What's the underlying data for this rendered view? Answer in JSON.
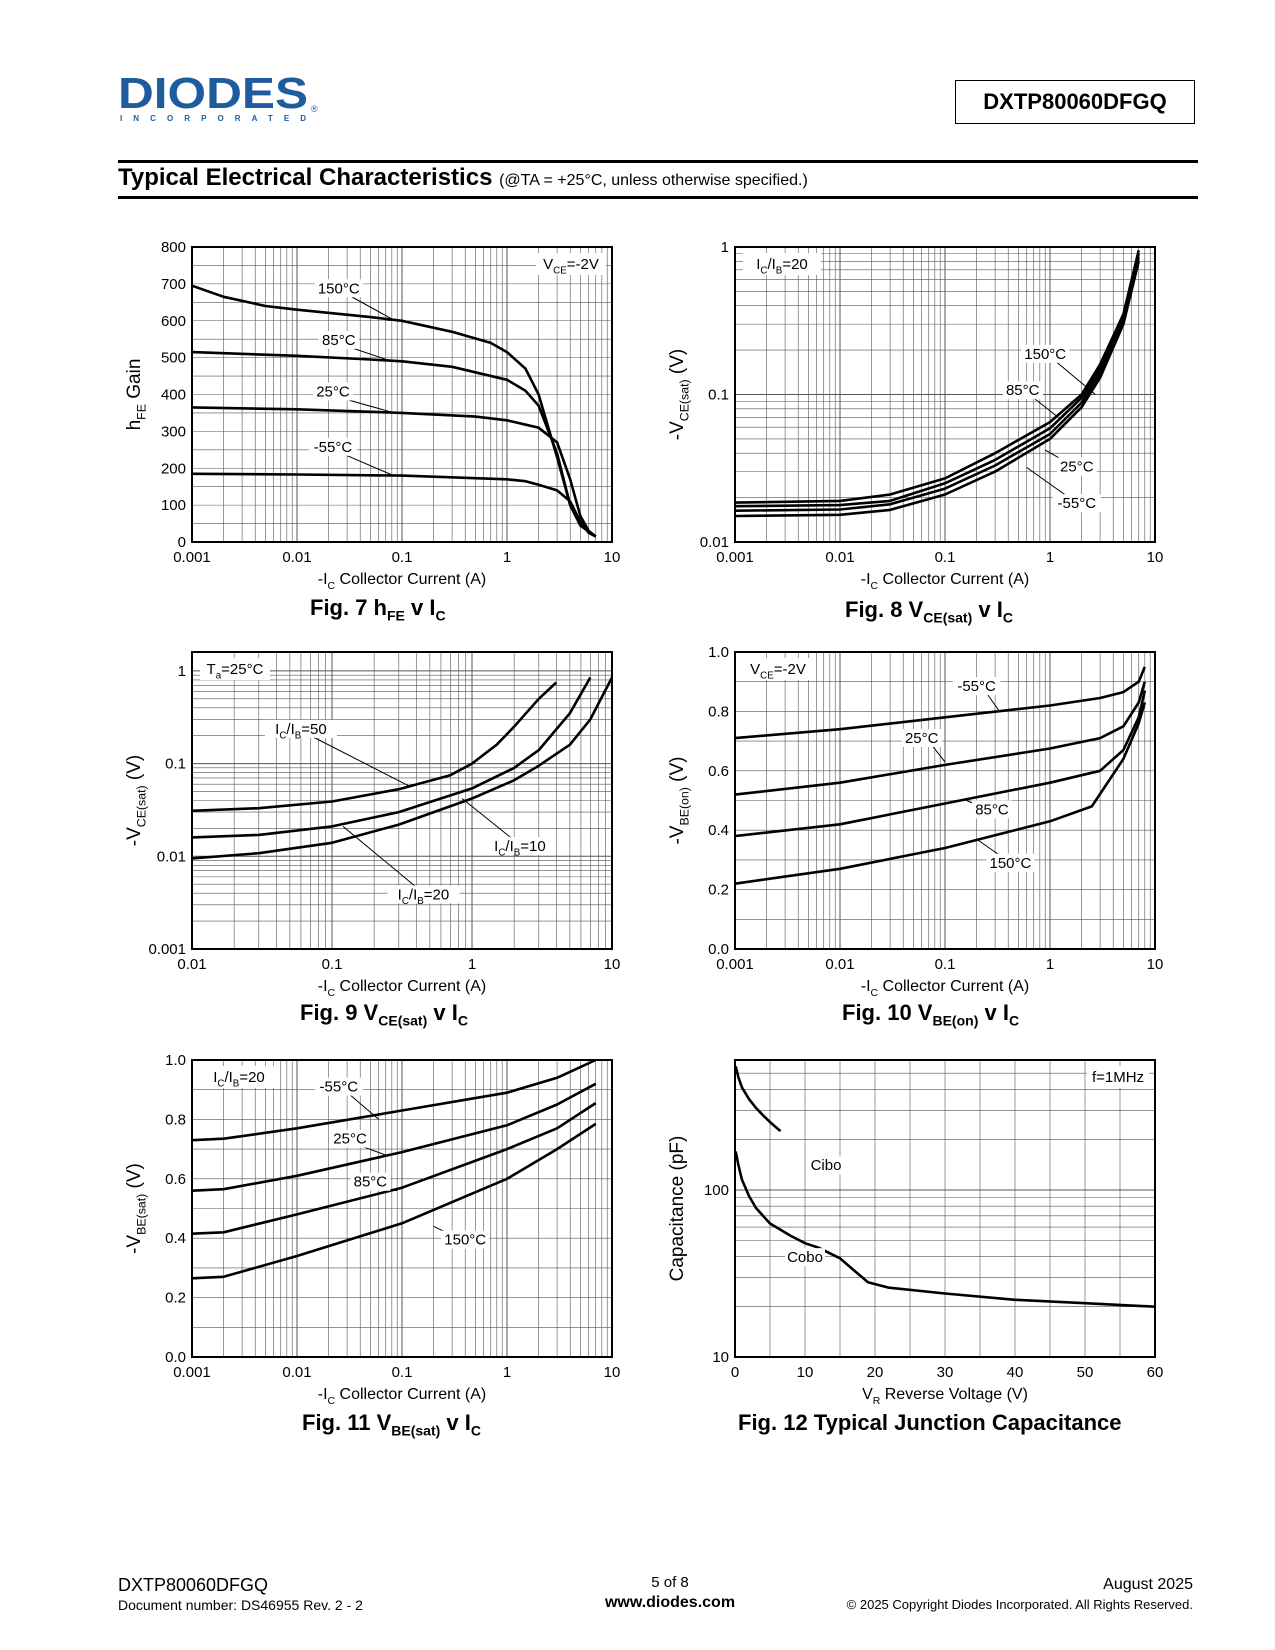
{
  "header": {
    "logo_text": "DIODES",
    "logo_sub": "INCORPORATED",
    "part_number": "DXTP80060DFGQ"
  },
  "section": {
    "title": "Typical Electrical Characteristics",
    "condition": "(@TA = +25°C, unless otherwise specified.)"
  },
  "footer": {
    "part": "DXTP80060DFGQ",
    "doc": "Document number: DS46955 Rev. 2 - 2",
    "page": "5 of 8",
    "site": "www.diodes.com",
    "date": "August 2025",
    "copyright": "© 2025 Copyright Diodes Incorporated. All Rights Reserved."
  },
  "chart_data": [
    {
      "id": "fig7",
      "type": "line",
      "caption": {
        "main": "Fig. 7   h",
        "sub1": "FE",
        "mid": " v  I",
        "sub2": "C"
      },
      "xscale": "log",
      "yscale": "linear",
      "xlim": [
        0.001,
        10
      ],
      "ylim": [
        0,
        800
      ],
      "xticks": [
        0.001,
        0.01,
        0.1,
        1,
        10
      ],
      "xticklabels": [
        "0.001",
        "0.01",
        "0.1",
        "1",
        "10"
      ],
      "yticks": [
        0,
        100,
        200,
        300,
        400,
        500,
        600,
        700,
        800
      ],
      "yticklabels": [
        "0",
        "100",
        "200",
        "300",
        "400",
        "500",
        "600",
        "700",
        "800"
      ],
      "xlabel": "-IC   Collector Current (A)",
      "ylabel": "hFE Gain",
      "annotation": "VCE=-2V",
      "series": [
        {
          "name": "150°C",
          "x": [
            0.001,
            0.002,
            0.005,
            0.01,
            0.05,
            0.1,
            0.3,
            0.7,
            1.0,
            1.5,
            2.0,
            3.0,
            4.0,
            5.0,
            7.0
          ],
          "y": [
            695,
            665,
            640,
            630,
            610,
            600,
            570,
            540,
            515,
            470,
            400,
            230,
            100,
            45,
            15
          ]
        },
        {
          "name": "85°C",
          "x": [
            0.001,
            0.01,
            0.05,
            0.1,
            0.3,
            1.0,
            1.5,
            2.0,
            3.0,
            4.0,
            5.0,
            7.0
          ],
          "y": [
            515,
            505,
            495,
            490,
            475,
            440,
            410,
            370,
            240,
            100,
            45,
            15
          ]
        },
        {
          "name": "25°C",
          "x": [
            0.001,
            0.01,
            0.1,
            0.5,
            1.0,
            2.0,
            3.0,
            4.0,
            5.0,
            6.0,
            7.0
          ],
          "y": [
            365,
            360,
            350,
            340,
            330,
            310,
            270,
            170,
            70,
            30,
            15
          ]
        },
        {
          "name": "-55°C",
          "x": [
            0.001,
            0.01,
            0.1,
            1.0,
            1.5,
            2.0,
            3.0,
            4.0,
            5.0,
            6.0,
            7.0
          ],
          "y": [
            185,
            183,
            180,
            170,
            165,
            155,
            140,
            110,
            55,
            25,
            15
          ]
        }
      ],
      "labels": [
        {
          "text": "150°C",
          "x": 0.025,
          "y": 680,
          "lx": 0.08,
          "ly": 605
        },
        {
          "text": "85°C",
          "x": 0.025,
          "y": 540,
          "lx": 0.08,
          "ly": 490
        },
        {
          "text": "25°C",
          "x": 0.022,
          "y": 400,
          "lx": 0.08,
          "ly": 352
        },
        {
          "text": "-55°C",
          "x": 0.022,
          "y": 250,
          "lx": 0.08,
          "ly": 182
        }
      ]
    },
    {
      "id": "fig8",
      "type": "line",
      "caption": {
        "main": "Fig. 8   V",
        "sub1": "CE(sat)",
        "mid": " v  I",
        "sub2": "C"
      },
      "xscale": "log",
      "yscale": "log",
      "xlim": [
        0.001,
        10
      ],
      "ylim": [
        0.01,
        1
      ],
      "xticks": [
        0.001,
        0.01,
        0.1,
        1,
        10
      ],
      "xticklabels": [
        "0.001",
        "0.01",
        "0.1",
        "1",
        "10"
      ],
      "yticks": [
        0.01,
        0.1,
        1
      ],
      "yticklabels": [
        "0.01",
        "0.1",
        "1"
      ],
      "xlabel": "-IC   Collector Current (A)",
      "ylabel": "-VCE(sat) (V)",
      "annotation": "IC/IB=20",
      "series": [
        {
          "name": "150°C",
          "x": [
            0.001,
            0.01,
            0.03,
            0.1,
            0.3,
            1.0,
            2.0,
            3.0,
            5.0,
            7.0
          ],
          "y": [
            0.0185,
            0.019,
            0.021,
            0.027,
            0.04,
            0.065,
            0.1,
            0.16,
            0.35,
            0.95
          ]
        },
        {
          "name": "85°C",
          "x": [
            0.001,
            0.01,
            0.03,
            0.1,
            0.3,
            1.0,
            2.0,
            3.0,
            5.0,
            7.0
          ],
          "y": [
            0.0175,
            0.0178,
            0.019,
            0.025,
            0.036,
            0.059,
            0.095,
            0.15,
            0.33,
            0.9
          ]
        },
        {
          "name": "25°C",
          "x": [
            0.001,
            0.01,
            0.03,
            0.1,
            0.3,
            1.0,
            2.0,
            3.0,
            5.0,
            7.0
          ],
          "y": [
            0.0163,
            0.0166,
            0.018,
            0.023,
            0.033,
            0.054,
            0.088,
            0.14,
            0.31,
            0.85
          ]
        },
        {
          "name": "-55°C",
          "x": [
            0.001,
            0.01,
            0.03,
            0.1,
            0.3,
            1.0,
            2.0,
            3.0,
            5.0,
            7.0
          ],
          "y": [
            0.015,
            0.0153,
            0.0165,
            0.021,
            0.03,
            0.05,
            0.082,
            0.13,
            0.3,
            0.8
          ]
        }
      ],
      "labels": [
        {
          "text": "150°C",
          "x": 0.9,
          "y": 0.18,
          "lx": 2.7,
          "ly": 0.1
        },
        {
          "text": "85°C",
          "x": 0.55,
          "y": 0.102,
          "lx": 1.2,
          "ly": 0.07
        },
        {
          "text": "25°C",
          "x": 1.8,
          "y": 0.031,
          "lx": 0.9,
          "ly": 0.042
        },
        {
          "text": "-55°C",
          "x": 1.8,
          "y": 0.0175,
          "lx": 0.6,
          "ly": 0.032
        }
      ]
    },
    {
      "id": "fig9",
      "type": "line",
      "caption": {
        "main": "Fig. 9   V",
        "sub1": "CE(sat)",
        "mid": " v  I",
        "sub2": "C"
      },
      "xscale": "log",
      "yscale": "log",
      "xlim": [
        0.01,
        10
      ],
      "ylim": [
        0.001,
        1.6
      ],
      "xticks": [
        0.01,
        0.1,
        1,
        10
      ],
      "xticklabels": [
        "0.01",
        "0.1",
        "1",
        "10"
      ],
      "yticks": [
        0.001,
        0.01,
        0.1,
        1
      ],
      "yticklabels": [
        "0.001",
        "0.01",
        "0.1",
        "1"
      ],
      "xlabel": "-IC   Collector Current (A)",
      "ylabel": "-VCE(sat) (V)",
      "annotation": "Ta=25°C",
      "series": [
        {
          "name": "IC/IB=50",
          "x": [
            0.01,
            0.03,
            0.1,
            0.3,
            0.7,
            1.0,
            1.5,
            2.0,
            3.0,
            4.0
          ],
          "y": [
            0.031,
            0.033,
            0.039,
            0.053,
            0.075,
            0.1,
            0.16,
            0.25,
            0.5,
            0.75
          ]
        },
        {
          "name": "IC/IB=20",
          "x": [
            0.01,
            0.03,
            0.1,
            0.3,
            1.0,
            2.0,
            3.0,
            5.0,
            7.0
          ],
          "y": [
            0.016,
            0.017,
            0.021,
            0.03,
            0.054,
            0.09,
            0.14,
            0.35,
            0.85
          ]
        },
        {
          "name": "IC/IB=10",
          "x": [
            0.01,
            0.03,
            0.1,
            0.3,
            1.0,
            2.0,
            3.0,
            5.0,
            7.0,
            10.0
          ],
          "y": [
            0.0095,
            0.0108,
            0.014,
            0.022,
            0.042,
            0.066,
            0.095,
            0.16,
            0.3,
            0.85
          ]
        }
      ],
      "labels": [
        {
          "text": "IC/IB=50",
          "x": 0.06,
          "y": 0.22,
          "lx": 0.35,
          "ly": 0.058
        },
        {
          "text": "IC/IB=10",
          "x": 2.2,
          "y": 0.012,
          "lx": 0.85,
          "ly": 0.042
        },
        {
          "text": "IC/IB=20",
          "x": 0.45,
          "y": 0.0036,
          "lx": 0.12,
          "ly": 0.021
        }
      ]
    },
    {
      "id": "fig10",
      "type": "line",
      "caption": {
        "main": "Fig. 10   V",
        "sub1": "BE(on)",
        "mid": " v  I",
        "sub2": "C"
      },
      "xscale": "log",
      "yscale": "linear",
      "xlim": [
        0.001,
        10
      ],
      "ylim": [
        0,
        1.0
      ],
      "xticks": [
        0.001,
        0.01,
        0.1,
        1,
        10
      ],
      "xticklabels": [
        "0.001",
        "0.01",
        "0.1",
        "1",
        "10"
      ],
      "yticks": [
        0,
        0.2,
        0.4,
        0.6,
        0.8,
        1.0
      ],
      "yticklabels": [
        "0.0",
        "0.2",
        "0.4",
        "0.6",
        "0.8",
        "1.0"
      ],
      "xlabel": "-IC   Collector Current (A)",
      "ylabel": "-VBE(on) (V)",
      "annotation": "VCE=-2V",
      "series": [
        {
          "name": "-55°C",
          "x": [
            0.001,
            0.01,
            0.1,
            1.0,
            3.0,
            5.0,
            7.0,
            8.0
          ],
          "y": [
            0.71,
            0.74,
            0.78,
            0.82,
            0.845,
            0.865,
            0.9,
            0.95
          ]
        },
        {
          "name": "25°C",
          "x": [
            0.001,
            0.01,
            0.1,
            1.0,
            3.0,
            5.0,
            7.0,
            8.0
          ],
          "y": [
            0.52,
            0.56,
            0.62,
            0.675,
            0.71,
            0.75,
            0.83,
            0.9
          ]
        },
        {
          "name": "85°C",
          "x": [
            0.001,
            0.01,
            0.1,
            1.0,
            3.0,
            5.0,
            7.0,
            8.0
          ],
          "y": [
            0.38,
            0.42,
            0.49,
            0.56,
            0.6,
            0.67,
            0.78,
            0.87
          ]
        },
        {
          "name": "150°C",
          "x": [
            0.001,
            0.01,
            0.1,
            1.0,
            2.5,
            5.0,
            7.0,
            8.0
          ],
          "y": [
            0.22,
            0.27,
            0.34,
            0.43,
            0.48,
            0.64,
            0.76,
            0.83
          ]
        }
      ],
      "labels": [
        {
          "text": "-55°C",
          "x": 0.2,
          "y": 0.875,
          "lx": 0.33,
          "ly": 0.8
        },
        {
          "text": "25°C",
          "x": 0.06,
          "y": 0.7,
          "lx": 0.1,
          "ly": 0.63
        },
        {
          "text": "85°C",
          "x": 0.28,
          "y": 0.46,
          "lx": 0.15,
          "ly": 0.505
        },
        {
          "text": "150°C",
          "x": 0.42,
          "y": 0.28,
          "lx": 0.2,
          "ly": 0.37
        }
      ]
    },
    {
      "id": "fig11",
      "type": "line",
      "caption": {
        "main": "Fig. 11   V",
        "sub1": "BE(sat)",
        "mid": " v  I",
        "sub2": "C"
      },
      "xscale": "log",
      "yscale": "linear",
      "xlim": [
        0.001,
        10
      ],
      "ylim": [
        0,
        1.0
      ],
      "xticks": [
        0.001,
        0.01,
        0.1,
        1,
        10
      ],
      "xticklabels": [
        "0.001",
        "0.01",
        "0.1",
        "1",
        "10"
      ],
      "yticks": [
        0,
        0.2,
        0.4,
        0.6,
        0.8,
        1.0
      ],
      "yticklabels": [
        "0.0",
        "0.2",
        "0.4",
        "0.6",
        "0.8",
        "1.0"
      ],
      "xlabel": "-IC   Collector Current (A)",
      "ylabel": "-VBE(sat) (V)",
      "annotation": "IC/IB=20",
      "series": [
        {
          "name": "-55°C",
          "x": [
            0.001,
            0.002,
            0.01,
            0.1,
            1.0,
            3.0,
            7.0
          ],
          "y": [
            0.73,
            0.735,
            0.77,
            0.83,
            0.89,
            0.94,
            1.0
          ]
        },
        {
          "name": "25°C",
          "x": [
            0.001,
            0.002,
            0.01,
            0.1,
            1.0,
            3.0,
            7.0
          ],
          "y": [
            0.56,
            0.565,
            0.61,
            0.69,
            0.78,
            0.85,
            0.92
          ]
        },
        {
          "name": "85°C",
          "x": [
            0.001,
            0.002,
            0.01,
            0.1,
            1.0,
            3.0,
            7.0
          ],
          "y": [
            0.415,
            0.42,
            0.48,
            0.57,
            0.7,
            0.77,
            0.855
          ]
        },
        {
          "name": "150°C",
          "x": [
            0.001,
            0.002,
            0.01,
            0.1,
            1.0,
            3.0,
            7.0
          ],
          "y": [
            0.265,
            0.27,
            0.34,
            0.45,
            0.6,
            0.7,
            0.785
          ]
        }
      ],
      "labels": [
        {
          "text": "-55°C",
          "x": 0.025,
          "y": 0.9,
          "lx": 0.06,
          "ly": 0.8
        },
        {
          "text": "25°C",
          "x": 0.032,
          "y": 0.725,
          "lx": 0.07,
          "ly": 0.68
        },
        {
          "text": "85°C",
          "x": 0.05,
          "y": 0.58,
          "lx": 0.09,
          "ly": 0.56
        },
        {
          "text": "150°C",
          "x": 0.4,
          "y": 0.385,
          "lx": 0.2,
          "ly": 0.44
        }
      ]
    },
    {
      "id": "fig12",
      "type": "line",
      "caption": {
        "main": "Fig. 12   Typical Junction Capacitance",
        "sub1": "",
        "mid": "",
        "sub2": ""
      },
      "xscale": "linear",
      "yscale": "log",
      "xlim": [
        0,
        60
      ],
      "ylim": [
        10,
        600
      ],
      "xticks": [
        0,
        10,
        20,
        30,
        40,
        50,
        60
      ],
      "xticklabels": [
        "0",
        "10",
        "20",
        "30",
        "40",
        "50",
        "60"
      ],
      "yticks": [
        10,
        100
      ],
      "yticklabels": [
        "10",
        "100"
      ],
      "xlabel": "VR   Reverse Voltage (V)",
      "ylabel": "Capacitance (pF)",
      "annotation": "f=1MHz",
      "series": [
        {
          "name": "Cibo",
          "x": [
            0.1,
            0.5,
            1,
            2,
            3,
            4,
            5,
            6.5
          ],
          "y": [
            550,
            470,
            410,
            350,
            310,
            280,
            255,
            225
          ]
        },
        {
          "name": "Cobo",
          "x": [
            0.1,
            0.5,
            1,
            2,
            3,
            5,
            8,
            10,
            12,
            15,
            17,
            19,
            22,
            30,
            40,
            50,
            60
          ],
          "y": [
            170,
            140,
            115,
            92,
            78,
            63,
            53,
            48,
            45,
            39,
            33,
            28,
            26,
            24,
            22,
            21,
            20
          ]
        }
      ],
      "labels": [
        {
          "text": "Cibo",
          "x": 13,
          "y": 135,
          "lx": null,
          "ly": null
        },
        {
          "text": "Cobo",
          "x": 10,
          "y": 38,
          "lx": null,
          "ly": null
        }
      ]
    }
  ]
}
